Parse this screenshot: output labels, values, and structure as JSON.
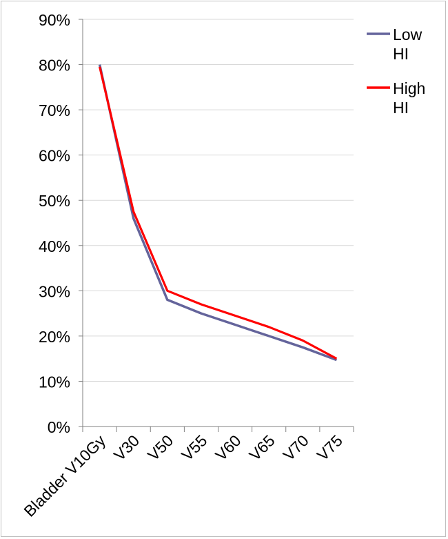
{
  "chart_data": {
    "type": "line",
    "title": "",
    "xlabel": "",
    "ylabel": "",
    "categories": [
      "Bladder V10Gy",
      "V30",
      "V50",
      "V55",
      "V60",
      "V65",
      "V70",
      "V75"
    ],
    "series": [
      {
        "name": "Low HI",
        "legend_lines": [
          "Low",
          "HI"
        ],
        "color": "#64649B",
        "values": [
          0.8,
          0.46,
          0.28,
          0.25,
          0.225,
          0.2,
          0.175,
          0.147
        ]
      },
      {
        "name": "High HI",
        "legend_lines": [
          "High",
          "HI"
        ],
        "color": "#FF0000",
        "values": [
          0.795,
          0.475,
          0.3,
          0.27,
          0.245,
          0.22,
          0.19,
          0.15
        ]
      }
    ],
    "yticks": [
      "0%",
      "10%",
      "20%",
      "30%",
      "40%",
      "50%",
      "60%",
      "70%",
      "80%",
      "90%"
    ],
    "ylim": [
      0,
      0.9
    ],
    "grid": true,
    "legend_position": "top-right"
  }
}
